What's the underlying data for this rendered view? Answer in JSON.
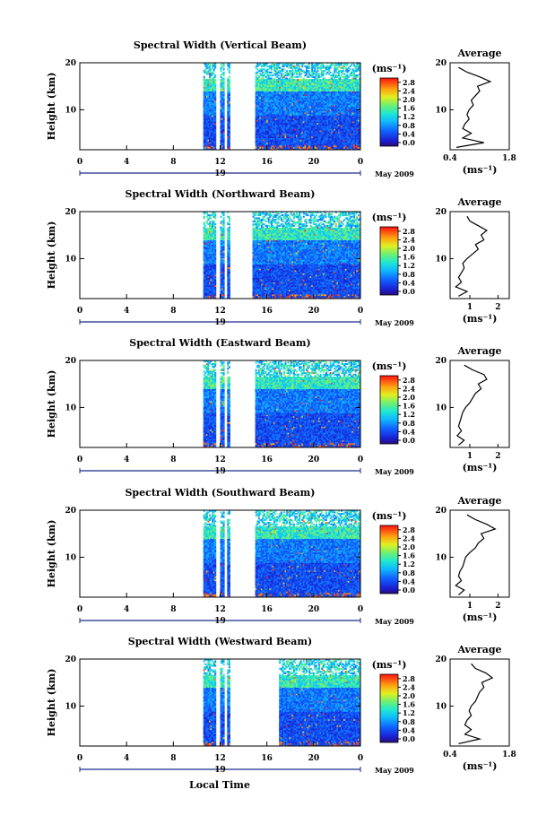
{
  "figure": {
    "xlabel": "Local Time",
    "date_label": "May 2009",
    "colorbar_unit": "(ms⁻¹)",
    "colorbar_ticks": [
      "2.8",
      "2.4",
      "2.0",
      "1.6",
      "1.2",
      "0.8",
      "0.4",
      "0.0"
    ],
    "time_ticks": [
      "0",
      "4",
      "8",
      "12",
      "16",
      "20",
      "0"
    ],
    "day_label": "19",
    "ylabel": "Height (km)",
    "height_ticks": [
      "20",
      "10"
    ],
    "avg_title": "Average",
    "avg_xlabel": "(ms⁻¹)"
  },
  "chart_data": [
    {
      "type": "heatmap",
      "title": "Spectral Width (Vertical Beam)",
      "x_range_hours": [
        0,
        24
      ],
      "y_range_km": [
        1.5,
        20
      ],
      "z_range": [
        0.0,
        3.0
      ],
      "data_gaps_hours": [
        [
          0,
          10.5
        ],
        [
          11.6,
          11.95
        ],
        [
          12.3,
          12.6
        ],
        [
          12.85,
          15.0
        ]
      ],
      "average_profile": {
        "xticks": [
          "0.4",
          "1.8"
        ],
        "xlim": [
          0.4,
          1.8
        ],
        "heights_km": [
          2,
          3,
          4,
          5,
          6,
          7,
          8,
          9,
          10,
          11,
          12,
          13,
          14,
          15,
          16,
          17,
          18,
          19
        ],
        "values": [
          0.55,
          1.2,
          0.7,
          0.9,
          0.7,
          0.75,
          0.85,
          0.8,
          0.85,
          0.95,
          0.9,
          1.0,
          1.1,
          1.05,
          1.35,
          1.1,
          0.8,
          0.6
        ]
      }
    },
    {
      "type": "heatmap",
      "title": "Spectral Width (Northward Beam)",
      "x_range_hours": [
        0,
        24
      ],
      "y_range_km": [
        1.5,
        20
      ],
      "z_range": [
        0.0,
        3.0
      ],
      "data_gaps_hours": [
        [
          0,
          10.5
        ],
        [
          11.6,
          11.95
        ],
        [
          12.3,
          12.6
        ],
        [
          12.85,
          14.8
        ]
      ],
      "average_profile": {
        "xticks": [
          "1",
          "2"
        ],
        "xlim": [
          0.3,
          2.4
        ],
        "heights_km": [
          2,
          3,
          4,
          5,
          6,
          7,
          8,
          9,
          10,
          11,
          12,
          13,
          14,
          15,
          16,
          17,
          18,
          19
        ],
        "values": [
          0.6,
          0.9,
          0.5,
          0.7,
          0.6,
          0.7,
          0.8,
          0.75,
          0.9,
          1.1,
          1.3,
          1.2,
          1.5,
          1.4,
          1.6,
          1.3,
          1.0,
          0.9
        ]
      }
    },
    {
      "type": "heatmap",
      "title": "Spectral Width (Eastward Beam)",
      "x_range_hours": [
        0,
        24
      ],
      "y_range_km": [
        1.5,
        20
      ],
      "z_range": [
        0.0,
        3.0
      ],
      "data_gaps_hours": [
        [
          0,
          10.5
        ],
        [
          11.6,
          11.95
        ],
        [
          12.3,
          12.6
        ],
        [
          12.85,
          15.0
        ]
      ],
      "average_profile": {
        "xticks": [
          "1",
          "2"
        ],
        "xlim": [
          0.3,
          2.4
        ],
        "heights_km": [
          2,
          3,
          4,
          5,
          6,
          7,
          8,
          9,
          10,
          11,
          12,
          13,
          14,
          15,
          16,
          17,
          18,
          19
        ],
        "values": [
          0.6,
          0.8,
          0.55,
          0.7,
          0.6,
          0.65,
          0.7,
          0.75,
          0.85,
          1.0,
          1.1,
          1.2,
          1.4,
          1.3,
          1.6,
          1.5,
          1.1,
          0.8
        ]
      }
    },
    {
      "type": "heatmap",
      "title": "Spectral Width (Southward Beam)",
      "x_range_hours": [
        0,
        24
      ],
      "y_range_km": [
        1.5,
        20
      ],
      "z_range": [
        0.0,
        3.0
      ],
      "data_gaps_hours": [
        [
          0,
          10.5
        ],
        [
          11.6,
          11.95
        ],
        [
          12.3,
          12.6
        ],
        [
          12.85,
          15.0
        ]
      ],
      "average_profile": {
        "xticks": [
          "1",
          "2"
        ],
        "xlim": [
          0.3,
          2.4
        ],
        "heights_km": [
          2,
          3,
          4,
          5,
          6,
          7,
          8,
          9,
          10,
          11,
          12,
          13,
          14,
          15,
          16,
          17,
          18,
          19
        ],
        "values": [
          0.6,
          0.8,
          0.5,
          0.7,
          0.6,
          0.65,
          0.75,
          0.8,
          0.85,
          1.0,
          1.2,
          1.3,
          1.5,
          1.4,
          1.9,
          1.6,
          1.2,
          0.9
        ]
      }
    },
    {
      "type": "heatmap",
      "title": "Spectral Width (Westward Beam)",
      "x_range_hours": [
        0,
        24
      ],
      "y_range_km": [
        1.5,
        20
      ],
      "z_range": [
        0.0,
        3.0
      ],
      "data_gaps_hours": [
        [
          0,
          10.5
        ],
        [
          11.6,
          11.95
        ],
        [
          12.3,
          12.6
        ],
        [
          12.85,
          17.0
        ]
      ],
      "average_profile": {
        "xticks": [
          "0.4",
          "1.8"
        ],
        "xlim": [
          0.4,
          1.8
        ],
        "heights_km": [
          2,
          3,
          4,
          5,
          6,
          7,
          8,
          9,
          10,
          11,
          12,
          13,
          14,
          15,
          16,
          17,
          18,
          19
        ],
        "values": [
          0.6,
          1.1,
          0.75,
          0.9,
          0.75,
          0.8,
          0.9,
          0.85,
          0.9,
          1.0,
          1.05,
          1.1,
          1.2,
          1.15,
          1.4,
          1.25,
          1.0,
          0.9
        ]
      }
    }
  ]
}
